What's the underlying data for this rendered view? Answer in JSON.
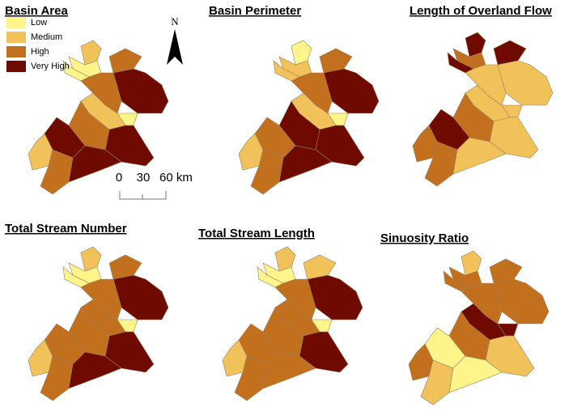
{
  "panels": [
    {
      "title": "Basin Area"
    },
    {
      "title": "Basin Perimeter"
    },
    {
      "title": "Length of Overland Flow"
    },
    {
      "title": "Total Stream Number"
    },
    {
      "title": "Total Stream Length"
    },
    {
      "title": "Sinuosity Ratio"
    }
  ],
  "legend": [
    {
      "label": "Low",
      "color": "#fdf58a"
    },
    {
      "label": "Medium",
      "color": "#f2c25a"
    },
    {
      "label": "High",
      "color": "#c2701e"
    },
    {
      "label": "Very High",
      "color": "#6e0a00"
    }
  ],
  "north": "N",
  "scale": [
    "0",
    "30",
    "60 km"
  ]
}
